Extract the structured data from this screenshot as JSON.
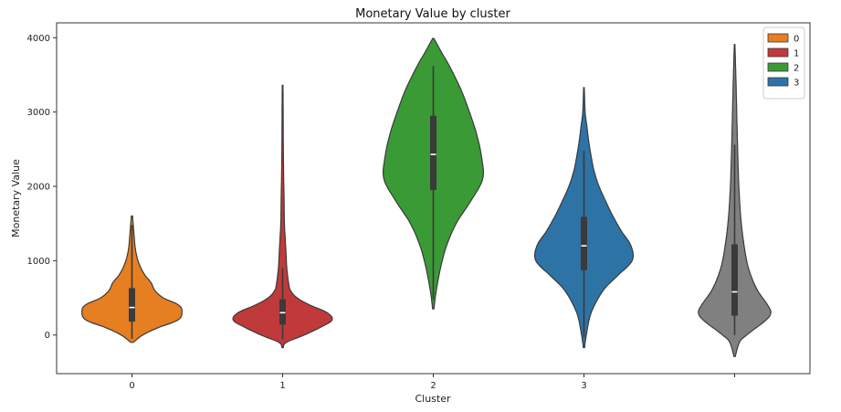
{
  "chart_data": {
    "type": "violin",
    "title": "Monetary Value by cluster",
    "xlabel": "Cluster",
    "ylabel": "Monetary Value",
    "ylim": [
      -520,
      4200
    ],
    "yticks": [
      0,
      1000,
      2000,
      3000,
      4000
    ],
    "grid": false,
    "legend": {
      "placement": "top-right",
      "title": ""
    },
    "categories": [
      "0",
      "1",
      "2",
      "3",
      ""
    ],
    "series": [
      {
        "name": "0",
        "color": "#e67e22",
        "min": -100,
        "q1": 180,
        "median": 370,
        "q3": 630,
        "max": 1600,
        "whisker_low": -50,
        "whisker_high": 1480,
        "profile": [
          [
            -100,
            0.02
          ],
          [
            0,
            0.18
          ],
          [
            100,
            0.44
          ],
          [
            200,
            0.76
          ],
          [
            300,
            0.83
          ],
          [
            400,
            0.78
          ],
          [
            500,
            0.52
          ],
          [
            600,
            0.38
          ],
          [
            700,
            0.32
          ],
          [
            800,
            0.22
          ],
          [
            900,
            0.15
          ],
          [
            1000,
            0.1
          ],
          [
            1100,
            0.07
          ],
          [
            1200,
            0.05
          ],
          [
            1300,
            0.04
          ],
          [
            1400,
            0.03
          ],
          [
            1500,
            0.02
          ],
          [
            1600,
            0.01
          ]
        ]
      },
      {
        "name": "1",
        "color": "#c0393b",
        "min": -170,
        "q1": 140,
        "median": 300,
        "q3": 480,
        "max": 3360,
        "whisker_low": -60,
        "whisker_high": 900,
        "profile": [
          [
            -170,
            0.01
          ],
          [
            -100,
            0.06
          ],
          [
            0,
            0.36
          ],
          [
            100,
            0.62
          ],
          [
            200,
            0.82
          ],
          [
            300,
            0.74
          ],
          [
            400,
            0.46
          ],
          [
            500,
            0.24
          ],
          [
            600,
            0.13
          ],
          [
            700,
            0.1
          ],
          [
            900,
            0.07
          ],
          [
            1200,
            0.05
          ],
          [
            1500,
            0.03
          ],
          [
            1800,
            0.025
          ],
          [
            2100,
            0.018
          ],
          [
            2500,
            0.012
          ],
          [
            3000,
            0.009
          ],
          [
            3360,
            0.006
          ]
        ]
      },
      {
        "name": "2",
        "color": "#3a9a36",
        "min": 350,
        "q1": 1950,
        "median": 2430,
        "q3": 2950,
        "max": 3990,
        "whisker_low": 480,
        "whisker_high": 3620,
        "profile": [
          [
            350,
            0.01
          ],
          [
            600,
            0.05
          ],
          [
            900,
            0.12
          ],
          [
            1200,
            0.22
          ],
          [
            1500,
            0.38
          ],
          [
            1800,
            0.62
          ],
          [
            2100,
            0.82
          ],
          [
            2400,
            0.8
          ],
          [
            2700,
            0.72
          ],
          [
            3000,
            0.6
          ],
          [
            3300,
            0.46
          ],
          [
            3600,
            0.28
          ],
          [
            3800,
            0.14
          ],
          [
            3990,
            0.01
          ]
        ]
      },
      {
        "name": "3",
        "color": "#2e73a6",
        "min": -170,
        "q1": 870,
        "median": 1200,
        "q3": 1590,
        "max": 3330,
        "whisker_low": -30,
        "whisker_high": 2480,
        "profile": [
          [
            -170,
            0.01
          ],
          [
            0,
            0.04
          ],
          [
            300,
            0.12
          ],
          [
            600,
            0.32
          ],
          [
            800,
            0.56
          ],
          [
            1000,
            0.8
          ],
          [
            1200,
            0.78
          ],
          [
            1400,
            0.62
          ],
          [
            1600,
            0.48
          ],
          [
            1800,
            0.36
          ],
          [
            2000,
            0.25
          ],
          [
            2200,
            0.17
          ],
          [
            2400,
            0.12
          ],
          [
            2600,
            0.08
          ],
          [
            2800,
            0.05
          ],
          [
            3000,
            0.02
          ],
          [
            3330,
            0.005
          ]
        ]
      },
      {
        "name": "",
        "color": "#808080",
        "min": -290,
        "q1": 260,
        "median": 580,
        "q3": 1220,
        "max": 3910,
        "whisker_low": 0,
        "whisker_high": 2560,
        "profile": [
          [
            -290,
            0.01
          ],
          [
            -100,
            0.08
          ],
          [
            0,
            0.2
          ],
          [
            200,
            0.52
          ],
          [
            300,
            0.6
          ],
          [
            400,
            0.55
          ],
          [
            600,
            0.38
          ],
          [
            800,
            0.27
          ],
          [
            1000,
            0.2
          ],
          [
            1300,
            0.14
          ],
          [
            1600,
            0.1
          ],
          [
            2000,
            0.07
          ],
          [
            2500,
            0.05
          ],
          [
            3000,
            0.035
          ],
          [
            3500,
            0.02
          ],
          [
            3910,
            0.005
          ]
        ]
      }
    ]
  }
}
